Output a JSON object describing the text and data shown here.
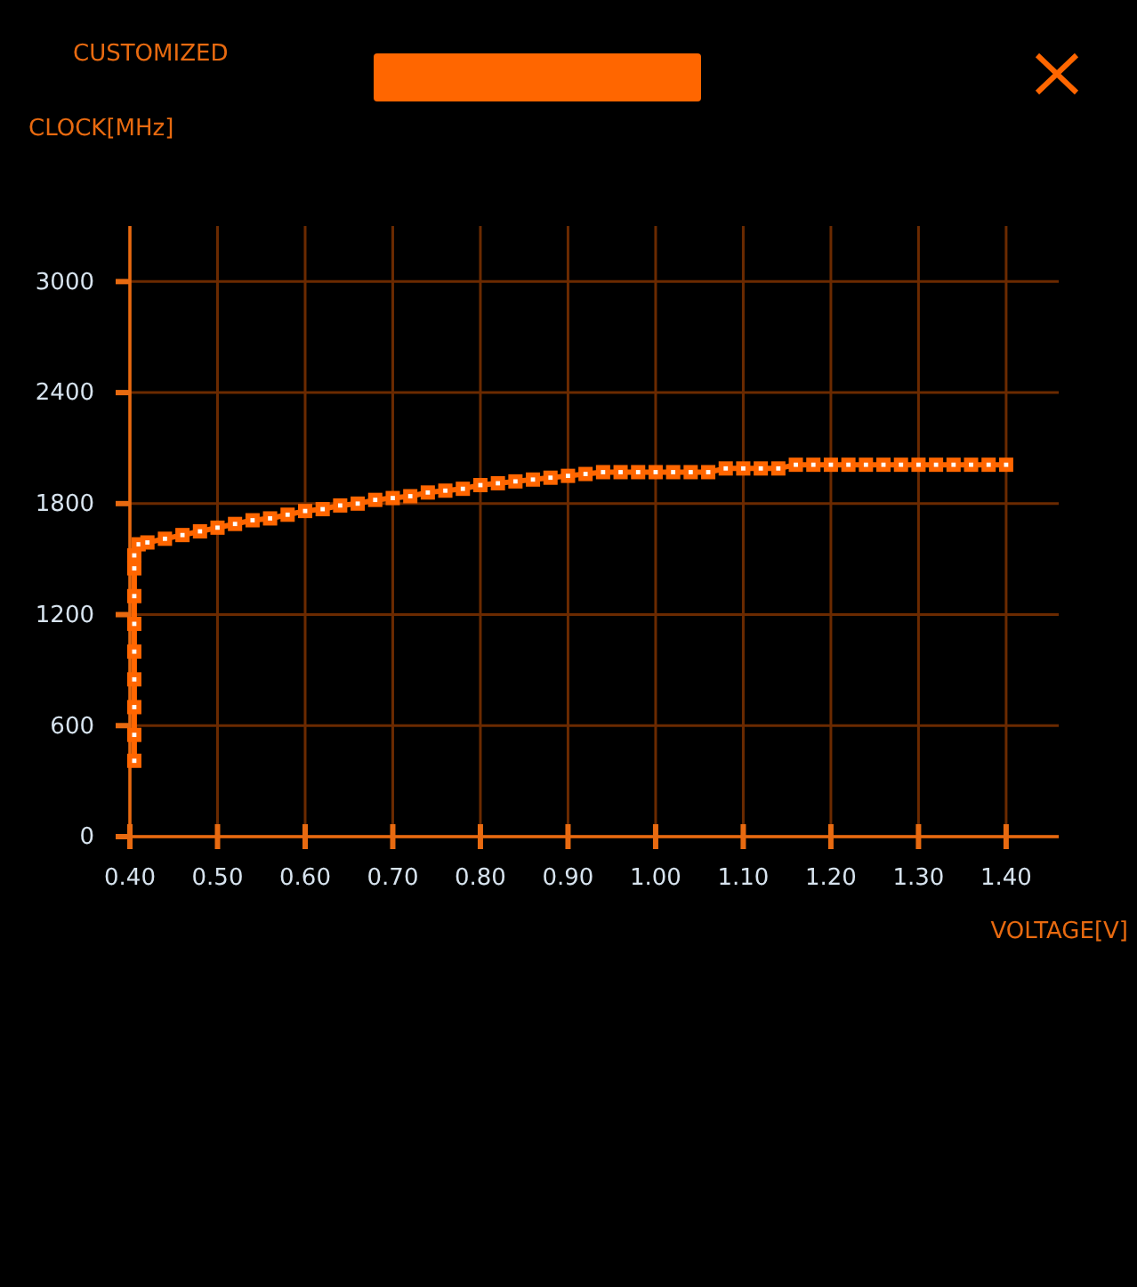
{
  "chart_data": {
    "type": "line",
    "title": "CUSTOMIZED",
    "xlabel": "VOLTAGE[V]",
    "ylabel": "CLOCK[MHz]",
    "series": [
      {
        "color": "#ff6600",
        "x": [
          0.405,
          0.405,
          0.405,
          0.405,
          0.405,
          0.405,
          0.405,
          0.405,
          0.405,
          0.41,
          0.42,
          0.44,
          0.46,
          0.48,
          0.5,
          0.52,
          0.54,
          0.56,
          0.58,
          0.6,
          0.62,
          0.64,
          0.66,
          0.68,
          0.7,
          0.72,
          0.74,
          0.76,
          0.78,
          0.8,
          0.82,
          0.84,
          0.86,
          0.88,
          0.9,
          0.92,
          0.94,
          0.96,
          0.98,
          1.0,
          1.02,
          1.04,
          1.06,
          1.08,
          1.1,
          1.12,
          1.14,
          1.16,
          1.18,
          1.2,
          1.22,
          1.24,
          1.26,
          1.28,
          1.3,
          1.32,
          1.34,
          1.36,
          1.38,
          1.4
        ],
        "values": [
          410,
          550,
          700,
          850,
          1000,
          1150,
          1300,
          1450,
          1520,
          1580,
          1590,
          1610,
          1630,
          1650,
          1670,
          1690,
          1710,
          1720,
          1740,
          1760,
          1770,
          1790,
          1800,
          1820,
          1830,
          1840,
          1860,
          1870,
          1880,
          1900,
          1910,
          1920,
          1930,
          1940,
          1950,
          1960,
          1970,
          1970,
          1970,
          1970,
          1970,
          1970,
          1970,
          1990,
          1990,
          1990,
          1990,
          2010,
          2010,
          2010,
          2010,
          2010,
          2010,
          2010,
          2010,
          2010,
          2010,
          2010,
          2010,
          2010
        ]
      }
    ],
    "xlim": [
      0.4,
      1.46
    ],
    "ylim": [
      0,
      3300
    ],
    "xticks": [
      {
        "value": 0.4,
        "label": "0.40"
      },
      {
        "value": 0.5,
        "label": "0.50"
      },
      {
        "value": 0.6,
        "label": "0.60"
      },
      {
        "value": 0.7,
        "label": "0.70"
      },
      {
        "value": 0.8,
        "label": "0.80"
      },
      {
        "value": 0.9,
        "label": "0.90"
      },
      {
        "value": 1.0,
        "label": "1.00"
      },
      {
        "value": 1.1,
        "label": "1.10"
      },
      {
        "value": 1.2,
        "label": "1.20"
      },
      {
        "value": 1.3,
        "label": "1.30"
      },
      {
        "value": 1.4,
        "label": "1.40"
      }
    ],
    "yticks": [
      0,
      600,
      1200,
      1800,
      2400,
      3000
    ],
    "grid": true,
    "marker": "square",
    "line_style": "solid"
  }
}
